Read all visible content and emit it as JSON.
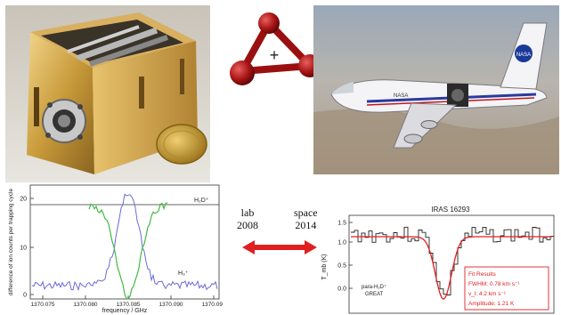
{
  "molecule": {
    "center_symbol": "+"
  },
  "labels": {
    "lab": "lab",
    "lab_year": "2008",
    "space": "space",
    "space_year": "2014"
  },
  "lab_plot": {
    "y_label": "difference of ion counts per trapping cycle",
    "x_label": "frequency / GHz",
    "legend_h2d": "H₂D⁺",
    "legend_h3": "H₃⁺",
    "y_ticks": [
      "0",
      "10",
      "20"
    ],
    "x_ticks": [
      "1370.075",
      "1370.080",
      "1370.085",
      "1370.090",
      "1370.095"
    ]
  },
  "space_plot": {
    "title": "IRAS 16293",
    "y_label": "T_mb (K)",
    "y_ticks": [
      "1.5",
      "1.0",
      "0.5",
      "0.0"
    ],
    "species_label_1": "para-H₂D⁺",
    "species_label_2": "GREAT",
    "fit_title": "Fit Results",
    "fit_fwhm": "FWHM: 0.78 km s⁻¹",
    "fit_vl": "v_l: 4.2 km s⁻¹",
    "fit_amp": "Amplitude: 1.21 K"
  },
  "plane": {
    "livery_text": "NASA",
    "logo_text": "NASA"
  },
  "colors": {
    "arrow": "#e02020",
    "molecule": "#b01818",
    "lab_green": "#44b844",
    "lab_blue": "#6a6ad8",
    "fit_red": "#e02020"
  }
}
